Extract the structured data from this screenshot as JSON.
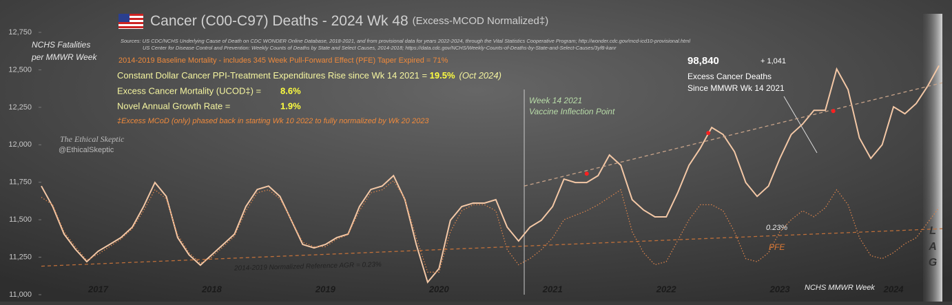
{
  "chart_data": {
    "type": "line",
    "title": "Cancer (C00-C97) Deaths - 2024 Wk 48",
    "subtitle": "(Excess-MCOD  Normalized‡)",
    "sources": [
      "Sources:  US CDC/NCHS Underlying  Cause of Death on CDC WONDER Online Database, 2018-2021, and from provisional data for years 2022-2024, through the Vital Statistics Cooperative Program; http://wonder.cdc.gov/mcd-icd10-provisional.html",
      "US Center for Disease Control and Prevention:  Weekly  Counts of Deaths by State and Select Causes, 2014-2018; https://data.cdc.gov/NCHS/Weekly-Counts-of-Deaths-by-State-and-Select-Causes/3yf8-kanr"
    ],
    "y_label": [
      "NCHS Fatalities",
      "per MMWR Week"
    ],
    "x_label": "NCHS MMWR Week",
    "notes": {
      "baseline": "2014-2019 Baseline Mortality - includes 345 Week Pull-Forward Effect (PFE) Taper Expired =  71%",
      "ppi_text": "Constant Dollar Cancer PPI-Treatment Expenditures Rise since Wk 14 2021  = ",
      "ppi_value": "19.5%",
      "ppi_date": "(Oct 2024)",
      "excess_text": "Excess Cancer Mortality (UCOD‡) =",
      "excess_value": "8.6%",
      "growth_text": "Novel Annual  Growth Rate  =",
      "growth_value": "1.9%",
      "footnote": "‡Excess  MCoD (only) phased back in starting  Wk 10 2022 to fully normalized  by Wk 20 2023",
      "brand": "The Ethical Skeptic",
      "handle": "@EthicalSkeptic",
      "inflection": [
        "Week 14 2021",
        "Vaccine Inflection Point"
      ],
      "excess_total": "98,840",
      "excess_delta": "+  1,041",
      "excess_caption": [
        "Excess Cancer Deaths",
        "Since MMWR Wk 14 2021"
      ],
      "trend_rate": "0.23%",
      "reference": "2014-2019 Normalized Reference AGR = 0.23%",
      "lag": [
        "L",
        "A",
        "G"
      ]
    },
    "x": [
      2017.0,
      2017.1,
      2017.2,
      2017.3,
      2017.4,
      2017.5,
      2017.6,
      2017.7,
      2017.8,
      2017.9,
      2018.0,
      2018.1,
      2018.2,
      2018.3,
      2018.4,
      2018.5,
      2018.6,
      2018.7,
      2018.8,
      2018.9,
      2019.0,
      2019.1,
      2019.2,
      2019.3,
      2019.4,
      2019.5,
      2019.6,
      2019.7,
      2019.8,
      2019.9,
      2020.0,
      2020.1,
      2020.2,
      2020.3,
      2020.4,
      2020.5,
      2020.6,
      2020.7,
      2020.8,
      2020.9,
      2021.0,
      2021.1,
      2021.2,
      2021.3,
      2021.4,
      2021.5,
      2021.6,
      2021.7,
      2021.8,
      2021.9,
      2022.0,
      2022.1,
      2022.2,
      2022.3,
      2022.4,
      2022.5,
      2022.6,
      2022.7,
      2022.8,
      2022.9,
      2023.0,
      2023.1,
      2023.2,
      2023.3,
      2023.4,
      2023.5,
      2023.6,
      2023.7,
      2023.8,
      2023.9,
      2024.0,
      2024.1,
      2024.2,
      2024.3,
      2024.4,
      2024.5,
      2024.6,
      2024.7,
      2024.8,
      2024.9
    ],
    "series": [
      {
        "color": "#f4c8a6",
        "style": "solid",
        "values": [
          11725,
          11588,
          11404,
          11303,
          11220,
          11290,
          11335,
          11381,
          11450,
          11588,
          11748,
          11656,
          11381,
          11266,
          11197,
          11266,
          11335,
          11404,
          11588,
          11702,
          11725,
          11656,
          11496,
          11335,
          11312,
          11335,
          11381,
          11404,
          11588,
          11702,
          11725,
          11794,
          11634,
          11335,
          11083,
          11174,
          11496,
          11588,
          11611,
          11611,
          11634,
          11450,
          11358,
          11450,
          11496,
          11588,
          11771,
          11748,
          11748,
          11794,
          11932,
          11863,
          11634,
          11565,
          11519,
          11519,
          11679,
          11863,
          11978,
          12115,
          12069,
          11954,
          11748,
          11656,
          11725,
          11909,
          12069,
          12138,
          12230,
          12230,
          12505,
          12368,
          12046,
          11909,
          12000,
          12253,
          12207,
          12276,
          12391,
          12528
        ]
      },
      {
        "name": "PFE",
        "color": "#d9834c",
        "style": "dotted",
        "values": [
          11650,
          11600,
          11420,
          11320,
          11230,
          11270,
          11320,
          11370,
          11440,
          11560,
          11700,
          11640,
          11400,
          11280,
          11210,
          11250,
          11320,
          11390,
          11560,
          11680,
          11700,
          11640,
          11500,
          11350,
          11320,
          11320,
          11370,
          11400,
          11560,
          11680,
          11700,
          11760,
          11640,
          11380,
          11150,
          11150,
          11420,
          11560,
          11600,
          11600,
          11560,
          11300,
          11200,
          11240,
          11300,
          11380,
          11500,
          11530,
          11560,
          11600,
          11650,
          11700,
          11420,
          11280,
          11200,
          11220,
          11360,
          11500,
          11600,
          11600,
          11560,
          11420,
          11240,
          11220,
          11280,
          11420,
          11500,
          11560,
          11520,
          11580,
          11700,
          11600,
          11380,
          11260,
          11240,
          11280,
          11340,
          11380,
          11480,
          11580
        ]
      },
      {
        "color": "#c0703a",
        "style": "dashed",
        "x": [
          2017.0,
          2024.93
        ],
        "values": [
          11190,
          11440
        ]
      },
      {
        "color": "#c9a48a",
        "style": "dashed",
        "x": [
          2021.25,
          2024.93
        ],
        "values": [
          11725,
          12414
        ]
      },
      {
        "color": "#ff2020",
        "style": "markers",
        "x": [
          2021.8,
          2022.87,
          2023.97
        ],
        "values": [
          11807,
          12078,
          12225
        ]
      }
    ],
    "inflection_x": 2021.25,
    "xlim": [
      2017.0,
      2024.93
    ],
    "ylim": [
      11000,
      12750
    ],
    "xticks": [
      {
        "value": 2017.5,
        "label": "2017"
      },
      {
        "value": 2018.5,
        "label": "2018"
      },
      {
        "value": 2019.5,
        "label": "2019"
      },
      {
        "value": 2020.5,
        "label": "2020"
      },
      {
        "value": 2021.5,
        "label": "2021"
      },
      {
        "value": 2022.5,
        "label": "2022"
      },
      {
        "value": 2023.5,
        "label": "2023"
      },
      {
        "value": 2024.5,
        "label": "2024"
      }
    ],
    "yticks": [
      {
        "value": 11000,
        "label": "11,000"
      },
      {
        "value": 11250,
        "label": "11,250"
      },
      {
        "value": 11500,
        "label": "11,500"
      },
      {
        "value": 11750,
        "label": "11,750"
      },
      {
        "value": 12000,
        "label": "12,000"
      },
      {
        "value": 12250,
        "label": "12,250"
      },
      {
        "value": 12500,
        "label": "12,500"
      },
      {
        "value": 12750,
        "label": "12,750"
      }
    ],
    "grid": false
  }
}
